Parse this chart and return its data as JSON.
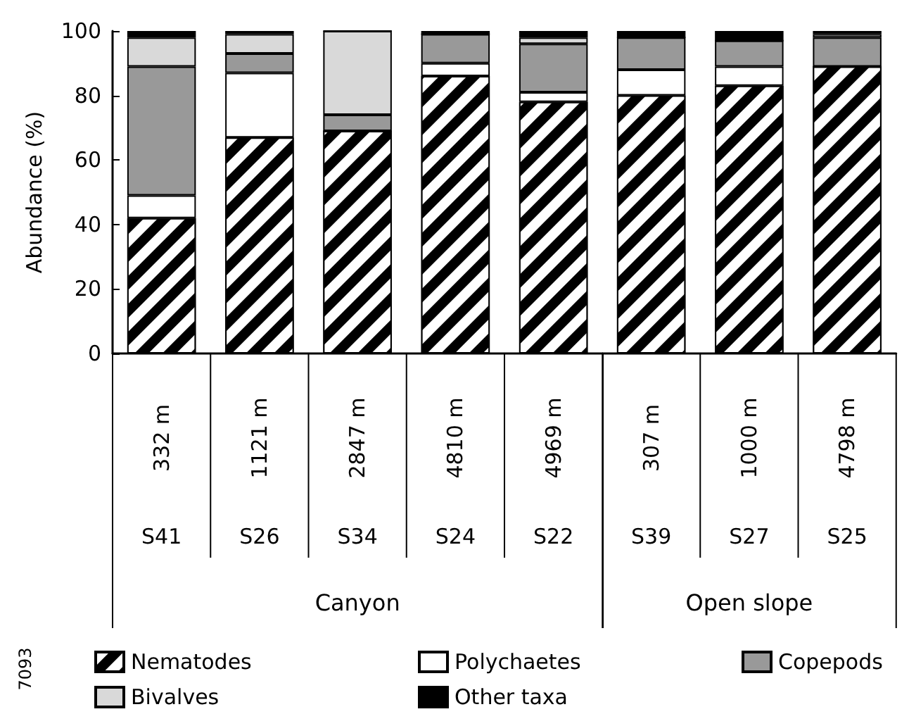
{
  "chart_data": [
    {
      "type": "bar",
      "stacked": true,
      "ylabel": "Abundance (%)",
      "xlabel": "Canyon",
      "categories": [
        "332 m",
        "1121 m",
        "2847 m",
        "4810 m",
        "4969 m"
      ],
      "series": [
        {
          "name": "Nematodes",
          "color": "#000000",
          "values": [
            42,
            67,
            69,
            86,
            78
          ]
        },
        {
          "name": "Polychaetes",
          "color": "#ffffff",
          "values": [
            7,
            20,
            0,
            4,
            3
          ]
        },
        {
          "name": "Copepods",
          "color": "#999999",
          "values": [
            40,
            6,
            5,
            9,
            15
          ]
        },
        {
          "name": "Bivalves",
          "color": "#d9d9d9",
          "values": [
            9,
            6,
            26,
            0,
            2
          ]
        },
        {
          "name": "Other taxa",
          "color": "#000000",
          "values": [
            2,
            1,
            0,
            1,
            2
          ]
        }
      ],
      "ylim": [
        0,
        100
      ],
      "yticks": [
        0,
        20,
        40,
        60,
        80,
        100
      ],
      "grid": false,
      "legend": "bottom",
      "annotations": [
        "S41",
        "S26",
        "S34",
        "S24",
        "S22",
        "7093"
      ]
    },
    {
      "type": "bar",
      "stacked": true,
      "xlabel": "Open slope",
      "categories": [
        "307 m",
        "1000 m",
        "4798 m"
      ],
      "series": [
        {
          "color": "#000000",
          "values": [
            80,
            83,
            89
          ]
        },
        {
          "color": "#ffffff",
          "values": [
            8,
            6,
            0
          ]
        },
        {
          "color": "#999999",
          "values": [
            10,
            8,
            9
          ]
        },
        {
          "color": "#d9d9d9",
          "values": [
            0,
            0,
            1
          ]
        },
        {
          "color": "#000000",
          "values": [
            2,
            3,
            1
          ]
        }
      ],
      "ylim": [
        0,
        100
      ],
      "yticks": [
        0,
        20,
        40,
        60,
        80,
        100
      ],
      "grid": false,
      "tick_labels": "x",
      "annotations": [
        "S39",
        "S27",
        "S25"
      ]
    }
  ]
}
